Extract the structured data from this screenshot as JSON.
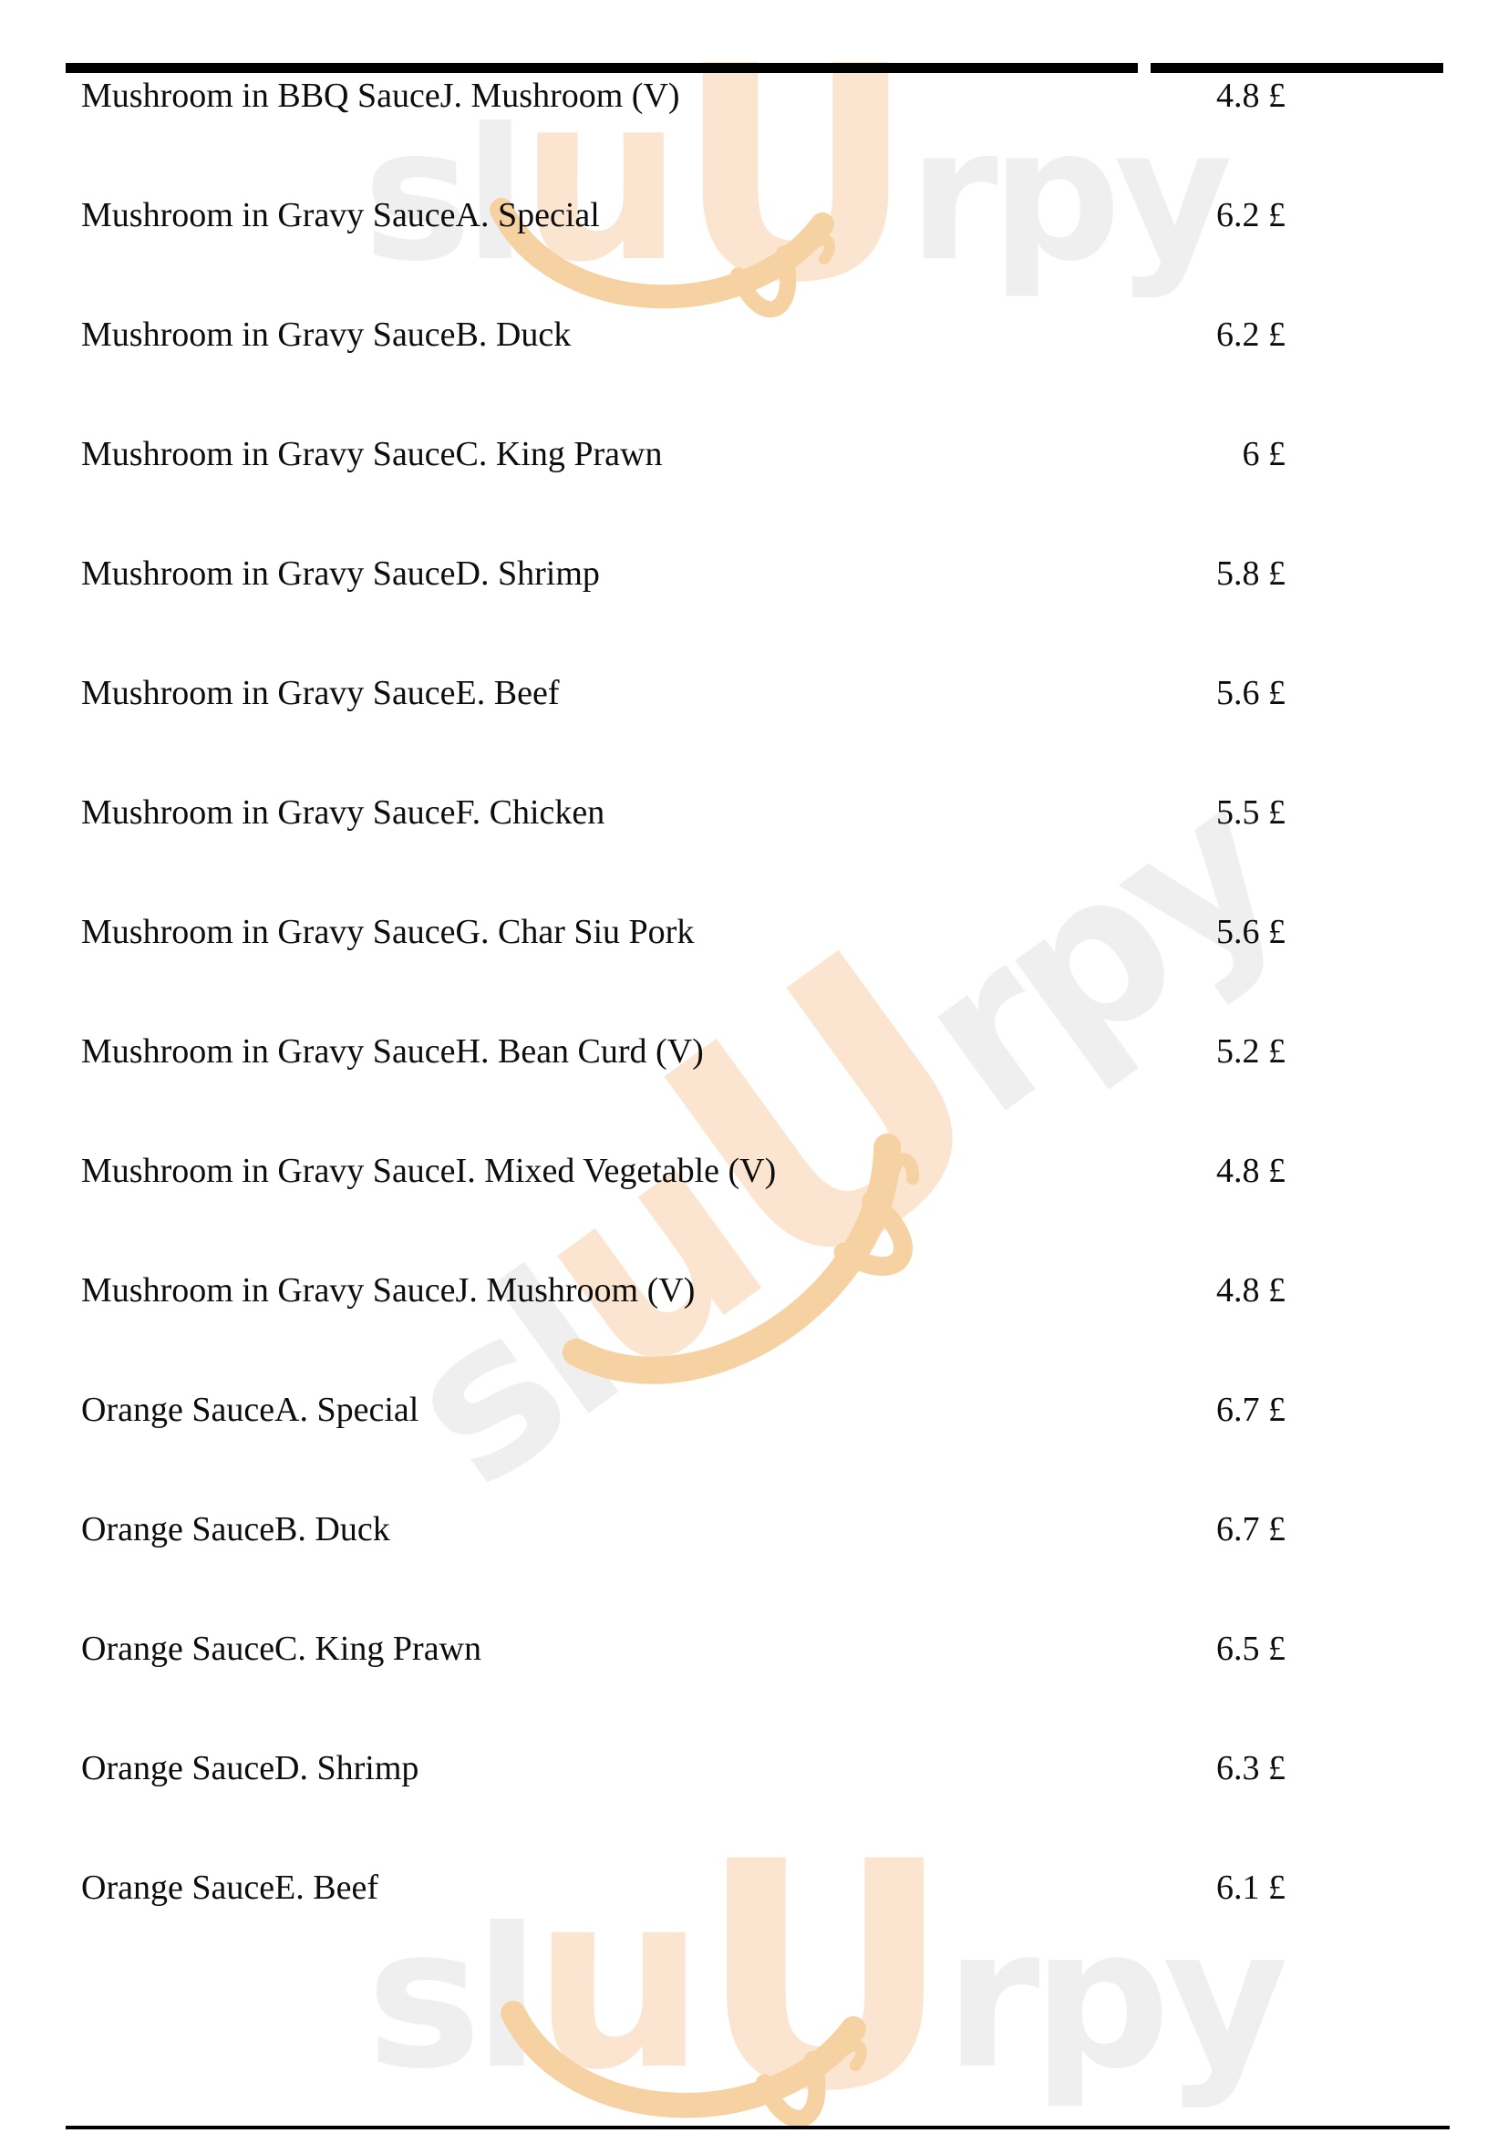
{
  "table": {
    "currency_symbol": "£",
    "items": [
      {
        "name": "Mushroom in BBQ SauceJ. Mushroom (V)",
        "price_display": "4.8 £"
      },
      {
        "name": "Mushroom in Gravy SauceA. Special",
        "price_display": "6.2 £"
      },
      {
        "name": "Mushroom in Gravy SauceB. Duck",
        "price_display": "6.2 £"
      },
      {
        "name": "Mushroom in Gravy SauceC. King Prawn",
        "price_display": "6 £"
      },
      {
        "name": "Mushroom in Gravy SauceD. Shrimp",
        "price_display": "5.8 £"
      },
      {
        "name": "Mushroom in Gravy SauceE. Beef",
        "price_display": "5.6 £"
      },
      {
        "name": "Mushroom in Gravy SauceF. Chicken",
        "price_display": "5.5 £"
      },
      {
        "name": "Mushroom in Gravy SauceG. Char Siu Pork",
        "price_display": "5.6 £"
      },
      {
        "name": "Mushroom in Gravy SauceH. Bean Curd (V)",
        "price_display": "5.2 £"
      },
      {
        "name": "Mushroom in Gravy SauceI. Mixed Vegetable (V)",
        "price_display": "4.8 £"
      },
      {
        "name": "Mushroom in Gravy SauceJ. Mushroom (V)",
        "price_display": "4.8 £"
      },
      {
        "name": "Orange SauceA. Special",
        "price_display": "6.7 £"
      },
      {
        "name": "Orange SauceB. Duck",
        "price_display": "6.7 £"
      },
      {
        "name": "Orange SauceC. King Prawn",
        "price_display": "6.5 £"
      },
      {
        "name": "Orange SauceD. Shrimp",
        "price_display": "6.3 £"
      },
      {
        "name": "Orange SauceE. Beef",
        "price_display": "6.1 £"
      }
    ]
  },
  "watermark": {
    "brand": "sluUrpy",
    "brand_segments": [
      {
        "text": "sl",
        "color_role": "gray",
        "size_role": "base"
      },
      {
        "text": "u",
        "color_role": "orange",
        "size_role": "u-small"
      },
      {
        "text": "U",
        "color_role": "orange",
        "size_role": "u-big"
      },
      {
        "text": "rpy",
        "color_role": "gray",
        "size_role": "base"
      }
    ],
    "colors": {
      "gray": "#efefef",
      "orange": "#fbe5d0",
      "smile": "#f6d2a2"
    }
  }
}
